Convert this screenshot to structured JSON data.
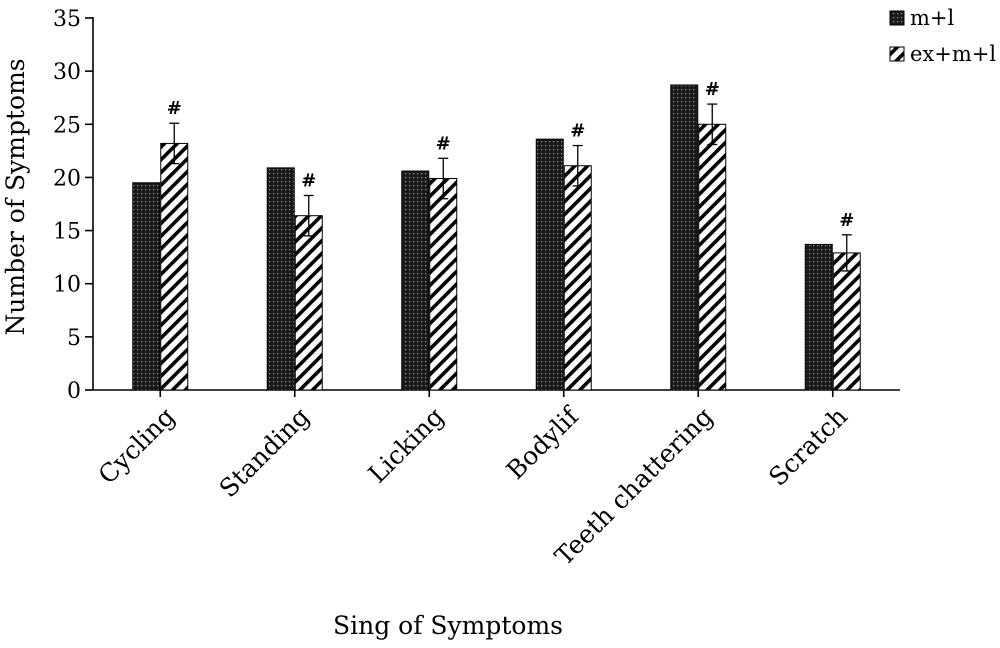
{
  "chart_data": {
    "type": "bar",
    "categories": [
      "Cycling",
      "Standing",
      "Licking",
      "Bodylif",
      "Teeth chattering",
      "Scratch"
    ],
    "series": [
      {
        "name": "m+l",
        "values": [
          19.5,
          20.9,
          20.6,
          23.6,
          28.7,
          13.7
        ],
        "errors": [
          0,
          0,
          0,
          0,
          0,
          0
        ],
        "pattern": "dotted-dark"
      },
      {
        "name": "ex+m+l",
        "values": [
          23.2,
          16.4,
          19.9,
          21.1,
          25.0,
          12.9
        ],
        "errors": [
          1.9,
          1.9,
          1.9,
          1.9,
          1.9,
          1.7
        ],
        "pattern": "diagonal-hatch"
      }
    ],
    "annotations": [
      "#",
      "#",
      "#",
      "#",
      "#",
      "#"
    ],
    "xlabel": "Sing of Symptoms",
    "ylabel": "Number of Symptoms",
    "ylim": [
      0,
      35
    ],
    "yticks": [
      0,
      5,
      10,
      15,
      20,
      25,
      30,
      35
    ],
    "grid": false,
    "legend_position": "top-right",
    "colors": {
      "axis": "#000000",
      "bar_dark": "#1a1a1a",
      "hatch": "#000000",
      "background": "#ffffff"
    }
  }
}
